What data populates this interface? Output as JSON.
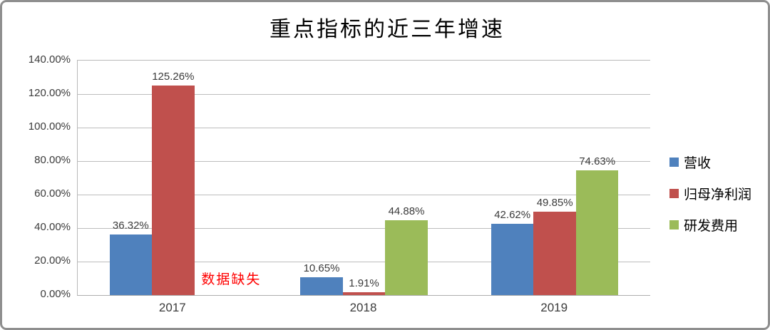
{
  "chart_data": {
    "type": "bar",
    "title": "重点指标的近三年增速",
    "categories": [
      "2017",
      "2018",
      "2019"
    ],
    "series": [
      {
        "name": "营收",
        "color": "#4F81BD",
        "values": [
          36.32,
          10.65,
          42.62
        ],
        "labels": [
          "36.32%",
          "10.65%",
          "42.62%"
        ]
      },
      {
        "name": "归母净利润",
        "color": "#C0504D",
        "values": [
          125.26,
          1.91,
          49.85
        ],
        "labels": [
          "125.26%",
          "1.91%",
          "49.85%"
        ]
      },
      {
        "name": "研发费用",
        "color": "#9BBB59",
        "values": [
          null,
          44.88,
          74.63
        ],
        "labels": [
          null,
          "44.88%",
          "74.63%"
        ]
      }
    ],
    "missing_note": {
      "text": "数据缺失",
      "color": "#FF0000",
      "category": "2017",
      "series": "研发费用"
    },
    "y_axis": {
      "ticks": [
        "0.00%",
        "20.00%",
        "40.00%",
        "60.00%",
        "80.00%",
        "100.00%",
        "120.00%",
        "140.00%"
      ],
      "min": 0,
      "max": 140,
      "step": 20
    },
    "xlabel": "",
    "ylabel": "",
    "legend_position": "right",
    "grid": true,
    "colors": {
      "grid": "#BDBDBD",
      "label_text": "#3B3B3B",
      "frame_border": "#8F8F8F"
    }
  }
}
